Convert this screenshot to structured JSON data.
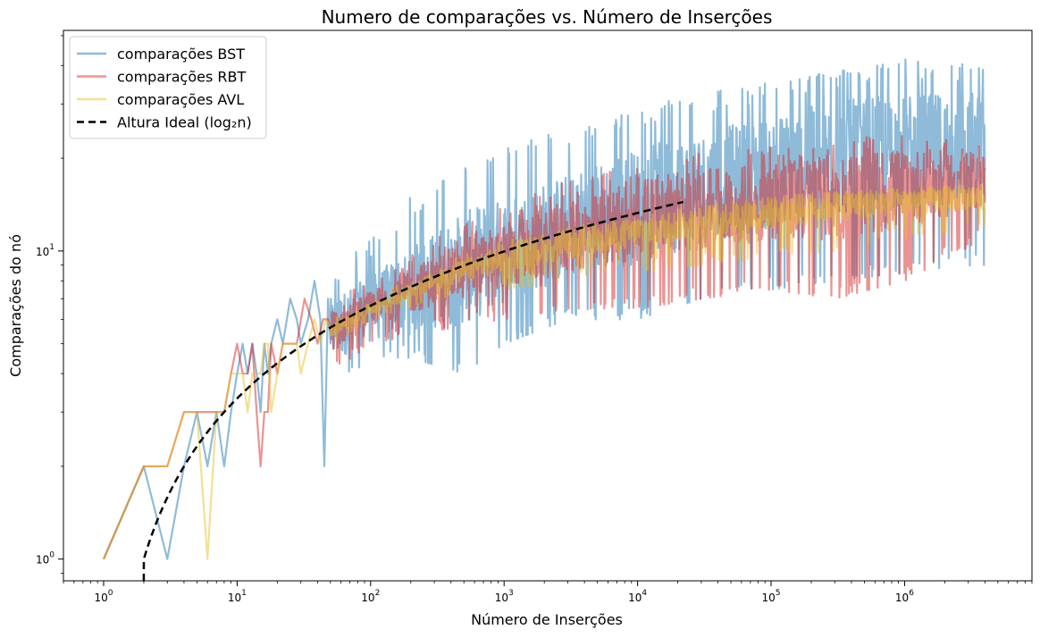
{
  "chart_data": {
    "type": "line",
    "title": "Numero de comparações vs. Número de Inserções",
    "xlabel": "Número de Inserções",
    "ylabel": "Comparações do nó",
    "xscale": "log",
    "yscale": "log",
    "xlim": [
      0.5,
      9000000
    ],
    "ylim": [
      0.85,
      52
    ],
    "grid": false,
    "legend_position": "top-left",
    "x_ticks": [
      {
        "value": 1,
        "base": "10",
        "exp": "0"
      },
      {
        "value": 10,
        "base": "10",
        "exp": "1"
      },
      {
        "value": 100,
        "base": "10",
        "exp": "2"
      },
      {
        "value": 1000,
        "base": "10",
        "exp": "3"
      },
      {
        "value": 10000,
        "base": "10",
        "exp": "4"
      },
      {
        "value": 100000,
        "base": "10",
        "exp": "5"
      },
      {
        "value": 1000000,
        "base": "10",
        "exp": "6"
      }
    ],
    "y_ticks": [
      {
        "value": 1,
        "base": "10",
        "exp": "0"
      },
      {
        "value": 10,
        "base": "10",
        "exp": "1"
      }
    ],
    "series": [
      {
        "name": "comparações BST",
        "color": "#1f77b4",
        "opacity": 0.5,
        "x_end": 4000000,
        "initial": [
          [
            1,
            1
          ],
          [
            2,
            2
          ],
          [
            3,
            1
          ],
          [
            4,
            2
          ],
          [
            5,
            3
          ],
          [
            6,
            2
          ],
          [
            7,
            3
          ],
          [
            8,
            2
          ],
          [
            9,
            3
          ],
          [
            10,
            4
          ],
          [
            11,
            5
          ],
          [
            12,
            4
          ],
          [
            13,
            5
          ],
          [
            14,
            4
          ],
          [
            15,
            3
          ],
          [
            16,
            5
          ],
          [
            17,
            4
          ],
          [
            18,
            5
          ],
          [
            20,
            6
          ],
          [
            22,
            5
          ],
          [
            25,
            7
          ],
          [
            28,
            6
          ],
          [
            30,
            5
          ],
          [
            34,
            6
          ],
          [
            38,
            8
          ],
          [
            42,
            6
          ],
          [
            45,
            2
          ],
          [
            48,
            7
          ]
        ],
        "envelope": [
          [
            50,
            3.5,
            8.5
          ],
          [
            100,
            4.5,
            11
          ],
          [
            200,
            4.5,
            15
          ],
          [
            500,
            4,
            19
          ],
          [
            1000,
            5,
            22
          ],
          [
            3000,
            6,
            26
          ],
          [
            10000,
            6,
            30
          ],
          [
            30000,
            7,
            33
          ],
          [
            100000,
            7.5,
            36
          ],
          [
            300000,
            8,
            39
          ],
          [
            1000000,
            8.5,
            42
          ],
          [
            4000000,
            9,
            41
          ]
        ],
        "center": [
          [
            50,
            5.5
          ],
          [
            100,
            6.5
          ],
          [
            300,
            8
          ],
          [
            1000,
            10
          ],
          [
            3000,
            12
          ],
          [
            10000,
            14
          ],
          [
            30000,
            16
          ],
          [
            100000,
            18
          ],
          [
            300000,
            20
          ],
          [
            1000000,
            21
          ],
          [
            4000000,
            22
          ]
        ]
      },
      {
        "name": "comparações RBT",
        "color": "#d62728",
        "opacity": 0.5,
        "x_end": 4000000,
        "initial": [
          [
            1,
            1
          ],
          [
            2,
            2
          ],
          [
            3,
            2
          ],
          [
            4,
            3
          ],
          [
            5,
            3
          ],
          [
            6,
            3
          ],
          [
            7,
            3
          ],
          [
            8,
            3
          ],
          [
            9,
            4
          ],
          [
            10,
            5
          ],
          [
            11,
            4
          ],
          [
            12,
            4
          ],
          [
            13,
            5
          ],
          [
            14,
            3
          ],
          [
            15,
            2
          ],
          [
            16,
            3
          ],
          [
            17,
            3
          ],
          [
            18,
            5
          ],
          [
            20,
            4
          ],
          [
            22,
            5
          ],
          [
            25,
            5
          ],
          [
            28,
            5
          ],
          [
            32,
            7
          ],
          [
            36,
            6
          ],
          [
            40,
            5
          ],
          [
            44,
            6
          ],
          [
            48,
            6
          ]
        ],
        "envelope": [
          [
            50,
            4,
            7
          ],
          [
            100,
            5,
            8
          ],
          [
            300,
            5.5,
            11
          ],
          [
            1000,
            6,
            14
          ],
          [
            3000,
            6.5,
            17
          ],
          [
            10000,
            6.5,
            19
          ],
          [
            30000,
            7,
            21
          ],
          [
            100000,
            7.5,
            22
          ],
          [
            300000,
            7,
            23
          ],
          [
            1000000,
            8,
            24
          ],
          [
            4000000,
            11,
            23
          ]
        ],
        "center": [
          [
            50,
            5.5
          ],
          [
            100,
            6.5
          ],
          [
            300,
            8
          ],
          [
            1000,
            9.5
          ],
          [
            3000,
            11
          ],
          [
            10000,
            12.5
          ],
          [
            30000,
            13.5
          ],
          [
            100000,
            14.5
          ],
          [
            300000,
            15
          ],
          [
            1000000,
            16
          ],
          [
            4000000,
            17
          ]
        ]
      },
      {
        "name": "comparações AVL",
        "color": "#e6c229",
        "opacity": 0.5,
        "x_end": 4000000,
        "initial": [
          [
            1,
            1
          ],
          [
            2,
            2
          ],
          [
            3,
            2
          ],
          [
            4,
            3
          ],
          [
            5,
            3
          ],
          [
            6,
            1
          ],
          [
            7,
            3
          ],
          [
            8,
            3
          ],
          [
            9,
            4
          ],
          [
            10,
            4
          ],
          [
            11,
            4
          ],
          [
            12,
            3
          ],
          [
            13,
            4
          ],
          [
            14,
            4
          ],
          [
            15,
            4
          ],
          [
            16,
            5
          ],
          [
            17,
            5
          ],
          [
            18,
            3
          ],
          [
            20,
            4
          ],
          [
            22,
            5
          ],
          [
            25,
            5
          ],
          [
            28,
            5
          ],
          [
            30,
            4
          ],
          [
            34,
            5
          ],
          [
            38,
            6
          ],
          [
            42,
            5
          ],
          [
            46,
            6
          ]
        ],
        "envelope": [
          [
            50,
            5,
            6
          ],
          [
            100,
            6,
            7
          ],
          [
            300,
            7,
            9
          ],
          [
            1000,
            7.5,
            11
          ],
          [
            3000,
            8,
            12
          ],
          [
            10000,
            8.5,
            13
          ],
          [
            30000,
            9,
            14
          ],
          [
            100000,
            9.5,
            15
          ],
          [
            300000,
            10,
            15.5
          ],
          [
            1000000,
            11,
            16
          ],
          [
            4000000,
            12,
            17
          ]
        ],
        "center": [
          [
            50,
            5.5
          ],
          [
            100,
            6.5
          ],
          [
            300,
            8
          ],
          [
            1000,
            9.5
          ],
          [
            3000,
            10.5
          ],
          [
            10000,
            11.5
          ],
          [
            30000,
            12.5
          ],
          [
            100000,
            13.3
          ],
          [
            300000,
            14
          ],
          [
            1000000,
            14.5
          ],
          [
            4000000,
            15
          ]
        ]
      },
      {
        "name": "Altura Ideal (log₂n)",
        "color": "#000000",
        "dashed": true,
        "function": "log2",
        "x_range": [
          2,
          22000
        ]
      }
    ]
  }
}
